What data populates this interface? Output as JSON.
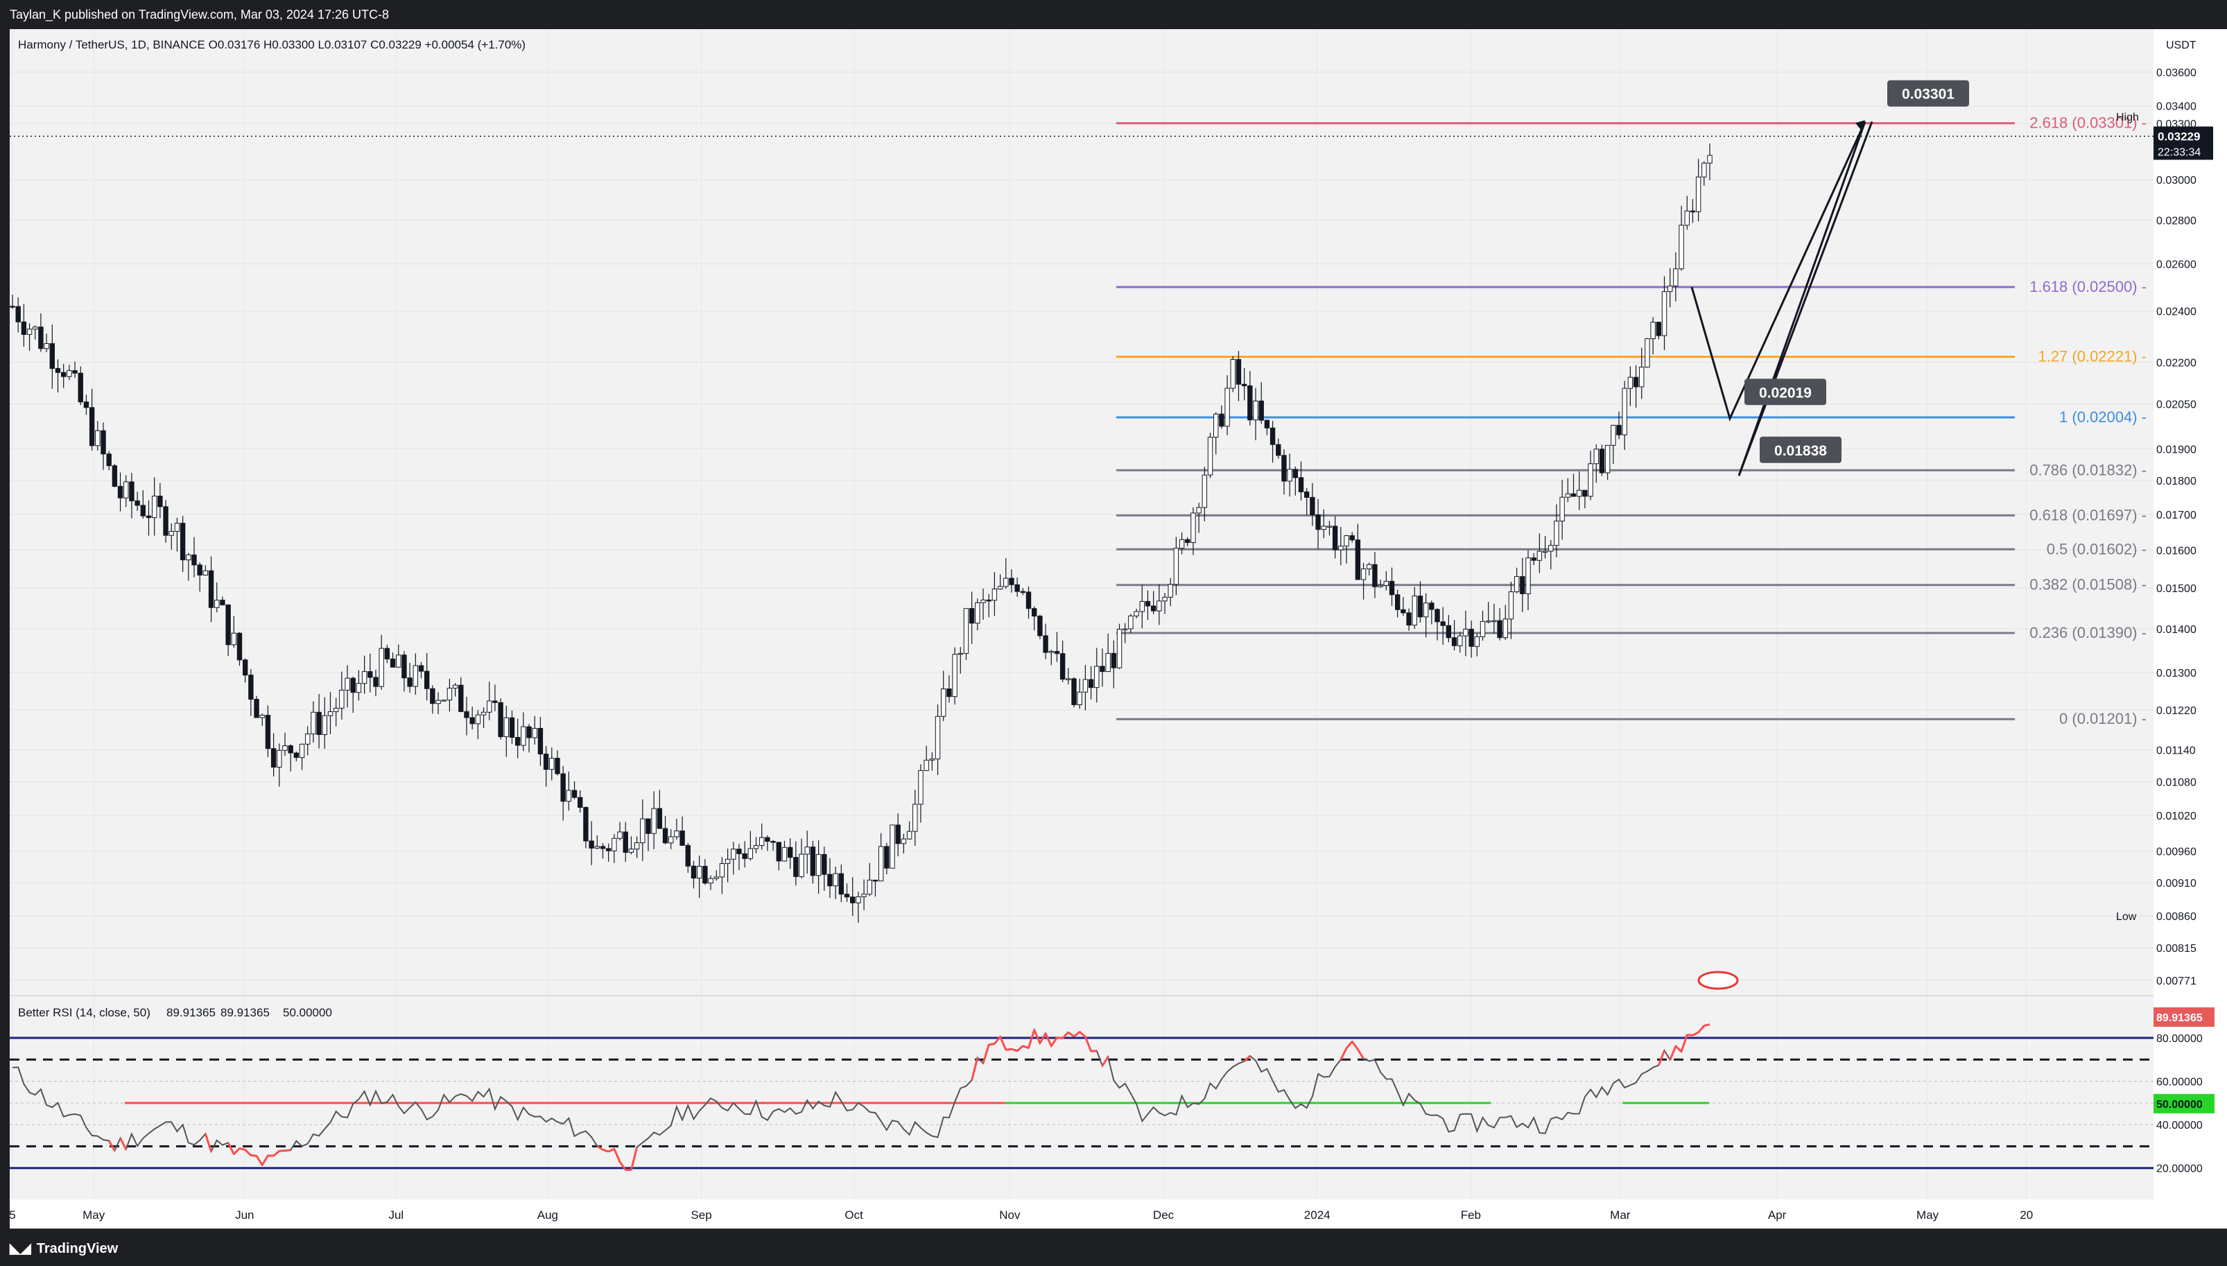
{
  "header": {
    "attribution": "Taylan_K published on TradingView.com, Mar 03, 2024 17:26 UTC-8"
  },
  "footer": {
    "brand": "TradingView"
  },
  "main_pane": {
    "legend": "Harmony / TetherUS, 1D, BINANCE  O0.03176  H0.03300  L0.03107  C0.03229  +0.00054 (+1.70%)",
    "currency": "USDT",
    "high_label": "High",
    "low_label": "Low",
    "last_price": "0.03229",
    "countdown": "22:33:34"
  },
  "rsi_pane": {
    "legend": "Better RSI (14, close, 50)",
    "v1": "89.91365",
    "v2": "89.91365",
    "v3": "50.00000",
    "badge_value": "89.91365",
    "badge_mid": "50.00000"
  },
  "colors": {
    "up": "#ffffff",
    "down": "#131722",
    "fib_red": "#e05a78",
    "fib_purple": "#8e6ad0",
    "fib_orange": "#f5a623",
    "fib_blue": "#3d8ee0",
    "fib_gray": "#787b86",
    "rsi_line": "#555555",
    "rsi_hot": "#ff4d4d",
    "rsi_mid": "#27d427",
    "rsi_band": "#1a237e"
  },
  "chart_data": [
    {
      "type": "candlestick",
      "title": "Harmony / TetherUS, 1D, BINANCE",
      "y_axis": {
        "scale": "log",
        "ticks": [
          "0.03600",
          "0.03400",
          "0.03300",
          "0.03000",
          "0.02800",
          "0.02600",
          "0.02400",
          "0.02200",
          "0.02050",
          "0.01900",
          "0.01800",
          "0.01700",
          "0.01600",
          "0.01500",
          "0.01400",
          "0.01300",
          "0.01220",
          "0.01140",
          "0.01080",
          "0.01020",
          "0.00960",
          "0.00910",
          "0.00860",
          "0.00815",
          "0.00771"
        ]
      },
      "x_axis": {
        "ticks": [
          "5",
          "May",
          "Jun",
          "Jul",
          "Aug",
          "Sep",
          "Oct",
          "Nov",
          "Dec",
          "2024",
          "Feb",
          "Mar",
          "Apr",
          "May",
          "20"
        ]
      },
      "high": 0.033,
      "low": 0.0086,
      "fibonacci": [
        {
          "ratio": "2.618",
          "value": 0.03301,
          "label": "2.618 (0.03301)",
          "color": "#e05a78"
        },
        {
          "ratio": "1.618",
          "value": 0.025,
          "label": "1.618 (0.02500)",
          "color": "#8e6ad0"
        },
        {
          "ratio": "1.27",
          "value": 0.02221,
          "label": "1.27 (0.02221)",
          "color": "#f5a623"
        },
        {
          "ratio": "1",
          "value": 0.02004,
          "label": "1 (0.02004)",
          "color": "#3d8ee0"
        },
        {
          "ratio": "0.786",
          "value": 0.01832,
          "label": "0.786 (0.01832)",
          "color": "#787b86"
        },
        {
          "ratio": "0.618",
          "value": 0.01697,
          "label": "0.618 (0.01697)",
          "color": "#787b86"
        },
        {
          "ratio": "0.5",
          "value": 0.01602,
          "label": "0.5 (0.01602)",
          "color": "#787b86"
        },
        {
          "ratio": "0.382",
          "value": 0.01508,
          "label": "0.382 (0.01508)",
          "color": "#787b86"
        },
        {
          "ratio": "0.236",
          "value": 0.0139,
          "label": "0.236 (0.01390)",
          "color": "#787b86"
        },
        {
          "ratio": "0",
          "value": 0.01201,
          "label": "0 (0.01201)",
          "color": "#787b86"
        }
      ],
      "projection_labels": [
        "0.03301",
        "0.02019",
        "0.01838"
      ],
      "price_path": [
        [
          "5",
          0.0242
        ],
        [
          "May",
          0.0218
        ],
        [
          "",
          0.0176
        ],
        [
          "",
          0.0168
        ],
        [
          "Jun",
          0.0142
        ],
        [
          "",
          0.0112
        ],
        [
          "",
          0.0122
        ],
        [
          "Jul",
          0.0132
        ],
        [
          "",
          0.0126
        ],
        [
          "",
          0.0121
        ],
        [
          "Aug",
          0.0114
        ],
        [
          "",
          0.0096
        ],
        [
          "",
          0.0101
        ],
        [
          "Sep",
          0.0093
        ],
        [
          "",
          0.0097
        ],
        [
          "Oct",
          0.0094
        ],
        [
          "",
          0.009
        ],
        [
          "",
          0.0103
        ],
        [
          "Nov",
          0.0142
        ],
        [
          "",
          0.0153
        ],
        [
          "",
          0.0123
        ],
        [
          "Dec",
          0.0138
        ],
        [
          "",
          0.0158
        ],
        [
          "",
          0.0216
        ],
        [
          "",
          0.0183
        ],
        [
          "2024",
          0.0162
        ],
        [
          "",
          0.0148
        ],
        [
          "Feb",
          0.0139
        ],
        [
          "",
          0.0141
        ],
        [
          "",
          0.0166
        ],
        [
          "",
          0.0188
        ],
        [
          "",
          0.0233
        ],
        [
          "Mar",
          0.0322
        ]
      ]
    },
    {
      "type": "line",
      "title": "Better RSI (14, close, 50)",
      "y_axis": {
        "ticks": [
          "80.00000",
          "60.00000",
          "40.00000",
          "20.00000"
        ]
      },
      "levels": [
        80,
        70,
        60,
        50,
        40,
        30,
        20
      ],
      "x": [
        "5",
        "May",
        "Jun",
        "Jul",
        "Aug",
        "Sep",
        "Oct",
        "Nov",
        "Dec",
        "2024",
        "Feb",
        "Mar"
      ],
      "rsi_path": [
        [
          "5",
          65
        ],
        [
          "",
          45
        ],
        [
          "May",
          30
        ],
        [
          "",
          40
        ],
        [
          "Jun",
          30
        ],
        [
          "",
          22
        ],
        [
          "",
          38
        ],
        [
          "Jul",
          54
        ],
        [
          "",
          46
        ],
        [
          "",
          55
        ],
        [
          "Aug",
          44
        ],
        [
          "",
          38
        ],
        [
          "",
          22
        ],
        [
          "",
          46
        ],
        [
          "Sep",
          50
        ],
        [
          "",
          44
        ],
        [
          "Oct",
          52
        ],
        [
          "",
          40
        ],
        [
          "",
          38
        ],
        [
          "Nov",
          76
        ],
        [
          "",
          80
        ],
        [
          "",
          78
        ],
        [
          "",
          42
        ],
        [
          "Dec",
          52
        ],
        [
          "",
          72
        ],
        [
          "",
          46
        ],
        [
          "",
          80
        ],
        [
          "2024",
          52
        ],
        [
          "",
          40
        ],
        [
          "Feb",
          42
        ],
        [
          "",
          40
        ],
        [
          "",
          58
        ],
        [
          "",
          68
        ],
        [
          "Mar",
          88
        ]
      ]
    }
  ]
}
